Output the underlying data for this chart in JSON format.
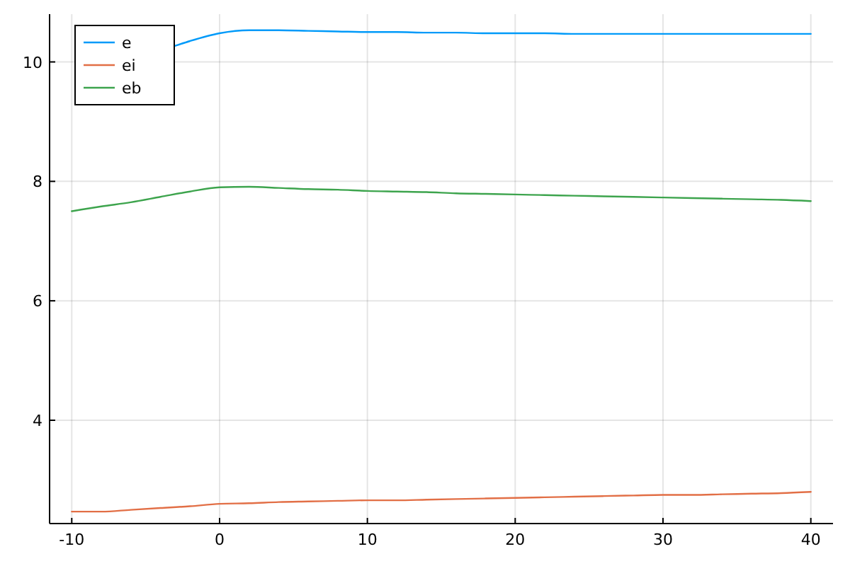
{
  "chart_data": {
    "type": "line",
    "x": [
      -10,
      -8,
      -6,
      -4,
      -2,
      0,
      2,
      4,
      6,
      8,
      10,
      12,
      14,
      16,
      18,
      20,
      22,
      24,
      26,
      28,
      30,
      32,
      34,
      36,
      38,
      40
    ],
    "series": [
      {
        "name": "e",
        "color": "#009af9",
        "x": [
          -3,
          -2,
          0,
          2,
          4,
          6,
          8,
          10,
          12,
          14,
          16,
          18,
          20,
          22,
          24,
          26,
          28,
          30,
          32,
          34,
          36,
          38,
          40
        ],
        "values": [
          10.27,
          10.35,
          10.48,
          10.53,
          10.53,
          10.52,
          10.51,
          10.5,
          10.5,
          10.49,
          10.49,
          10.48,
          10.48,
          10.48,
          10.47,
          10.47,
          10.47,
          10.47,
          10.47,
          10.47,
          10.47,
          10.47,
          10.47
        ]
      },
      {
        "name": "ei",
        "color": "#e26f46",
        "values": [
          2.47,
          2.47,
          2.5,
          2.53,
          2.56,
          2.6,
          2.61,
          2.63,
          2.64,
          2.65,
          2.66,
          2.66,
          2.67,
          2.68,
          2.69,
          2.7,
          2.71,
          2.72,
          2.73,
          2.74,
          2.75,
          2.75,
          2.76,
          2.77,
          2.78,
          2.8
        ]
      },
      {
        "name": "eb",
        "color": "#3da44d",
        "values": [
          7.5,
          7.58,
          7.65,
          7.74,
          7.83,
          7.9,
          7.91,
          7.89,
          7.87,
          7.86,
          7.84,
          7.83,
          7.82,
          7.8,
          7.79,
          7.78,
          7.77,
          7.76,
          7.75,
          7.74,
          7.73,
          7.72,
          7.71,
          7.7,
          7.69,
          7.67
        ]
      }
    ],
    "xlim": [
      -11.5,
      41.5
    ],
    "ylim": [
      2.27,
      10.8
    ],
    "xticks": [
      -10,
      0,
      10,
      20,
      30,
      40
    ],
    "yticks": [
      4,
      6,
      8,
      10
    ],
    "grid": true,
    "legend": "top left",
    "line_style": "solid"
  }
}
